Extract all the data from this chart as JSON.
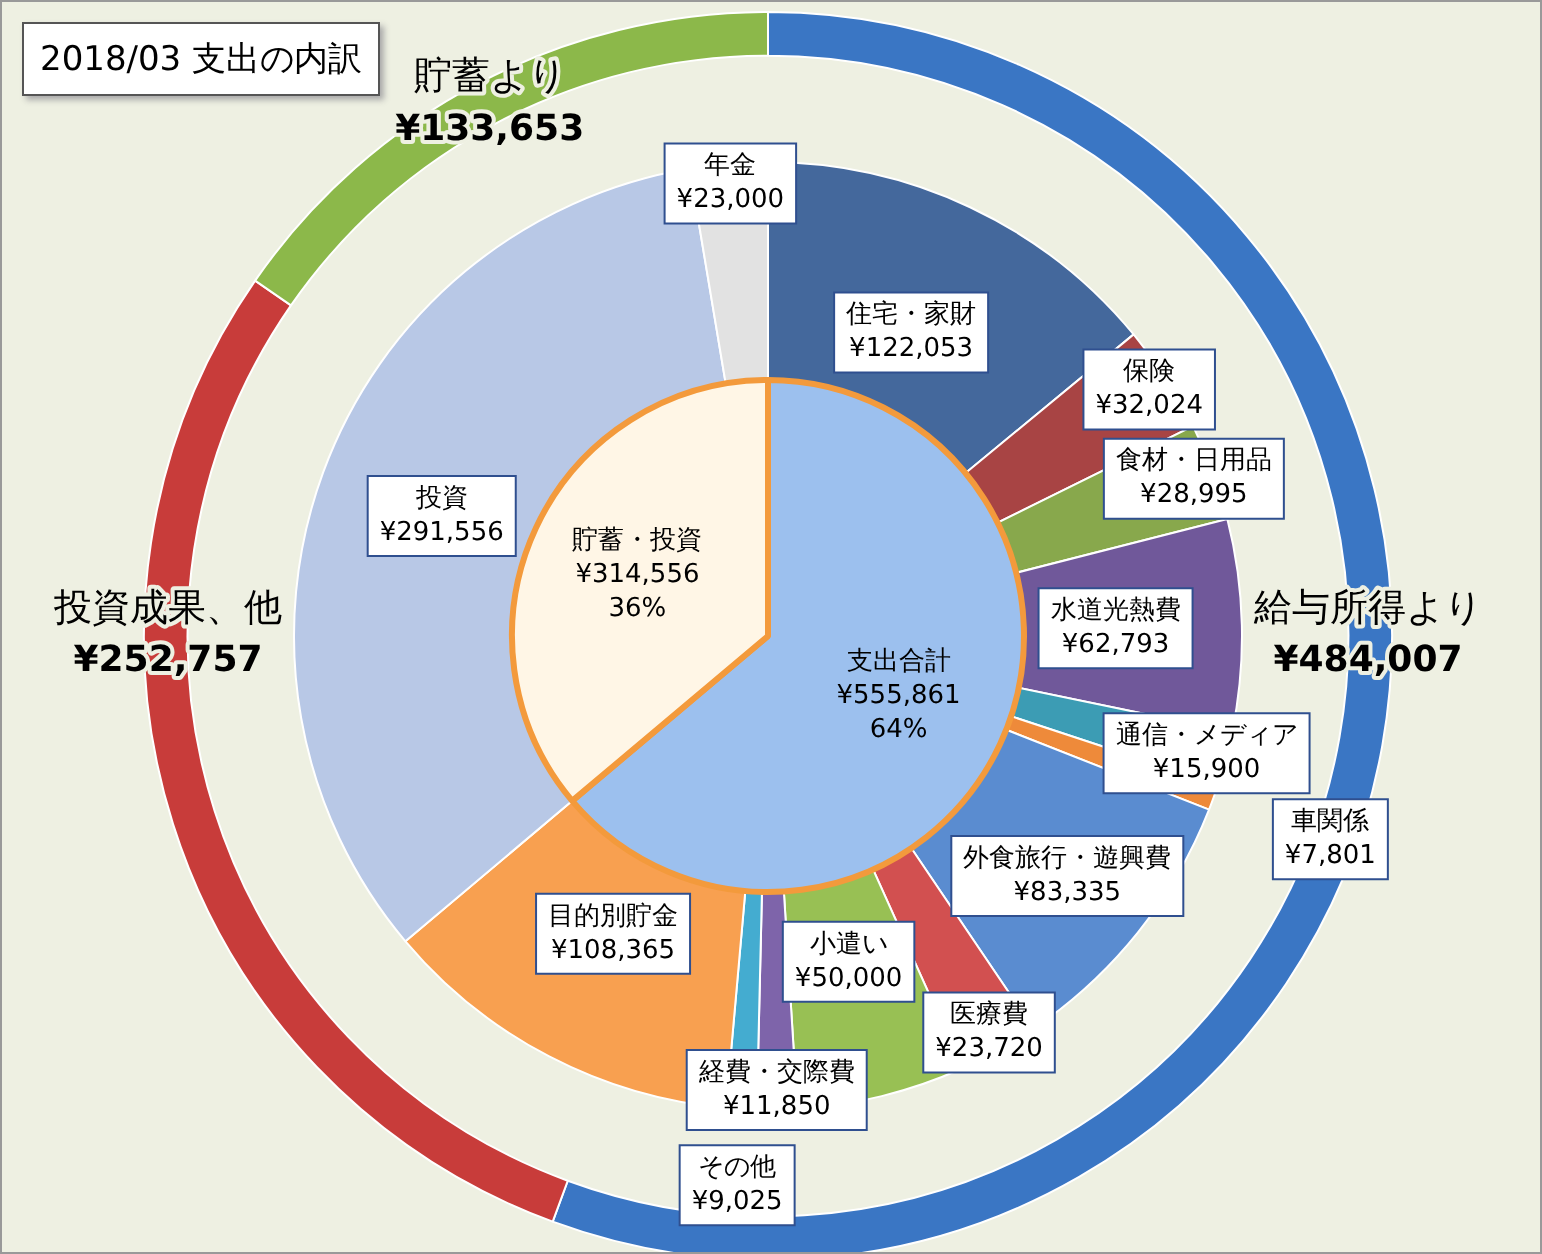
{
  "chart_data": [
    {
      "type": "donut",
      "title": "2018/03 支出の内訳",
      "categories": [
        "給与所得より",
        "投資成果、他",
        "貯蓄より"
      ],
      "values": [
        484007,
        252757,
        133653
      ],
      "colors": [
        "#3a76c4",
        "#c83c3a",
        "#8cb84a"
      ],
      "value_labels": [
        "¥484,007",
        "¥252,757",
        "¥133,653"
      ],
      "legend": false
    },
    {
      "type": "donut",
      "categories": [
        "住宅・家財",
        "保険",
        "食材・日用品",
        "水道光熱費",
        "通信・メディア",
        "車関係",
        "外食旅行・遊興費",
        "医療費",
        "小遣い",
        "経費・交際費",
        "その他",
        "目的別貯金",
        "投資",
        "年金"
      ],
      "values": [
        122053,
        32024,
        28995,
        62793,
        15900,
        7801,
        83335,
        23720,
        50000,
        11850,
        9025,
        108365,
        291556,
        23000
      ],
      "colors": [
        "#44689c",
        "#a84444",
        "#88a84c",
        "#70589a",
        "#3c9cb4",
        "#ee8a3a",
        "#5a8cd0",
        "#d25050",
        "#98c054",
        "#7e64aa",
        "#44acd0",
        "#f8a050",
        "#b8c8e6",
        "#e2e2e2"
      ],
      "value_labels": [
        "¥122,053",
        "¥32,024",
        "¥28,995",
        "¥62,793",
        "¥15,900",
        "¥7,801",
        "¥83,335",
        "¥23,720",
        "¥50,000",
        "¥11,850",
        "¥9,025",
        "¥108,365",
        "¥291,556",
        "¥23,000"
      ],
      "legend": false
    },
    {
      "type": "pie",
      "categories": [
        "支出合計",
        "貯蓄・投資"
      ],
      "values": [
        555861,
        314556
      ],
      "colors": [
        "#9cc0ee",
        "#fff6e6"
      ],
      "value_labels": [
        "¥555,861\n64%",
        "¥314,556\n36%"
      ],
      "legend": false
    }
  ]
}
